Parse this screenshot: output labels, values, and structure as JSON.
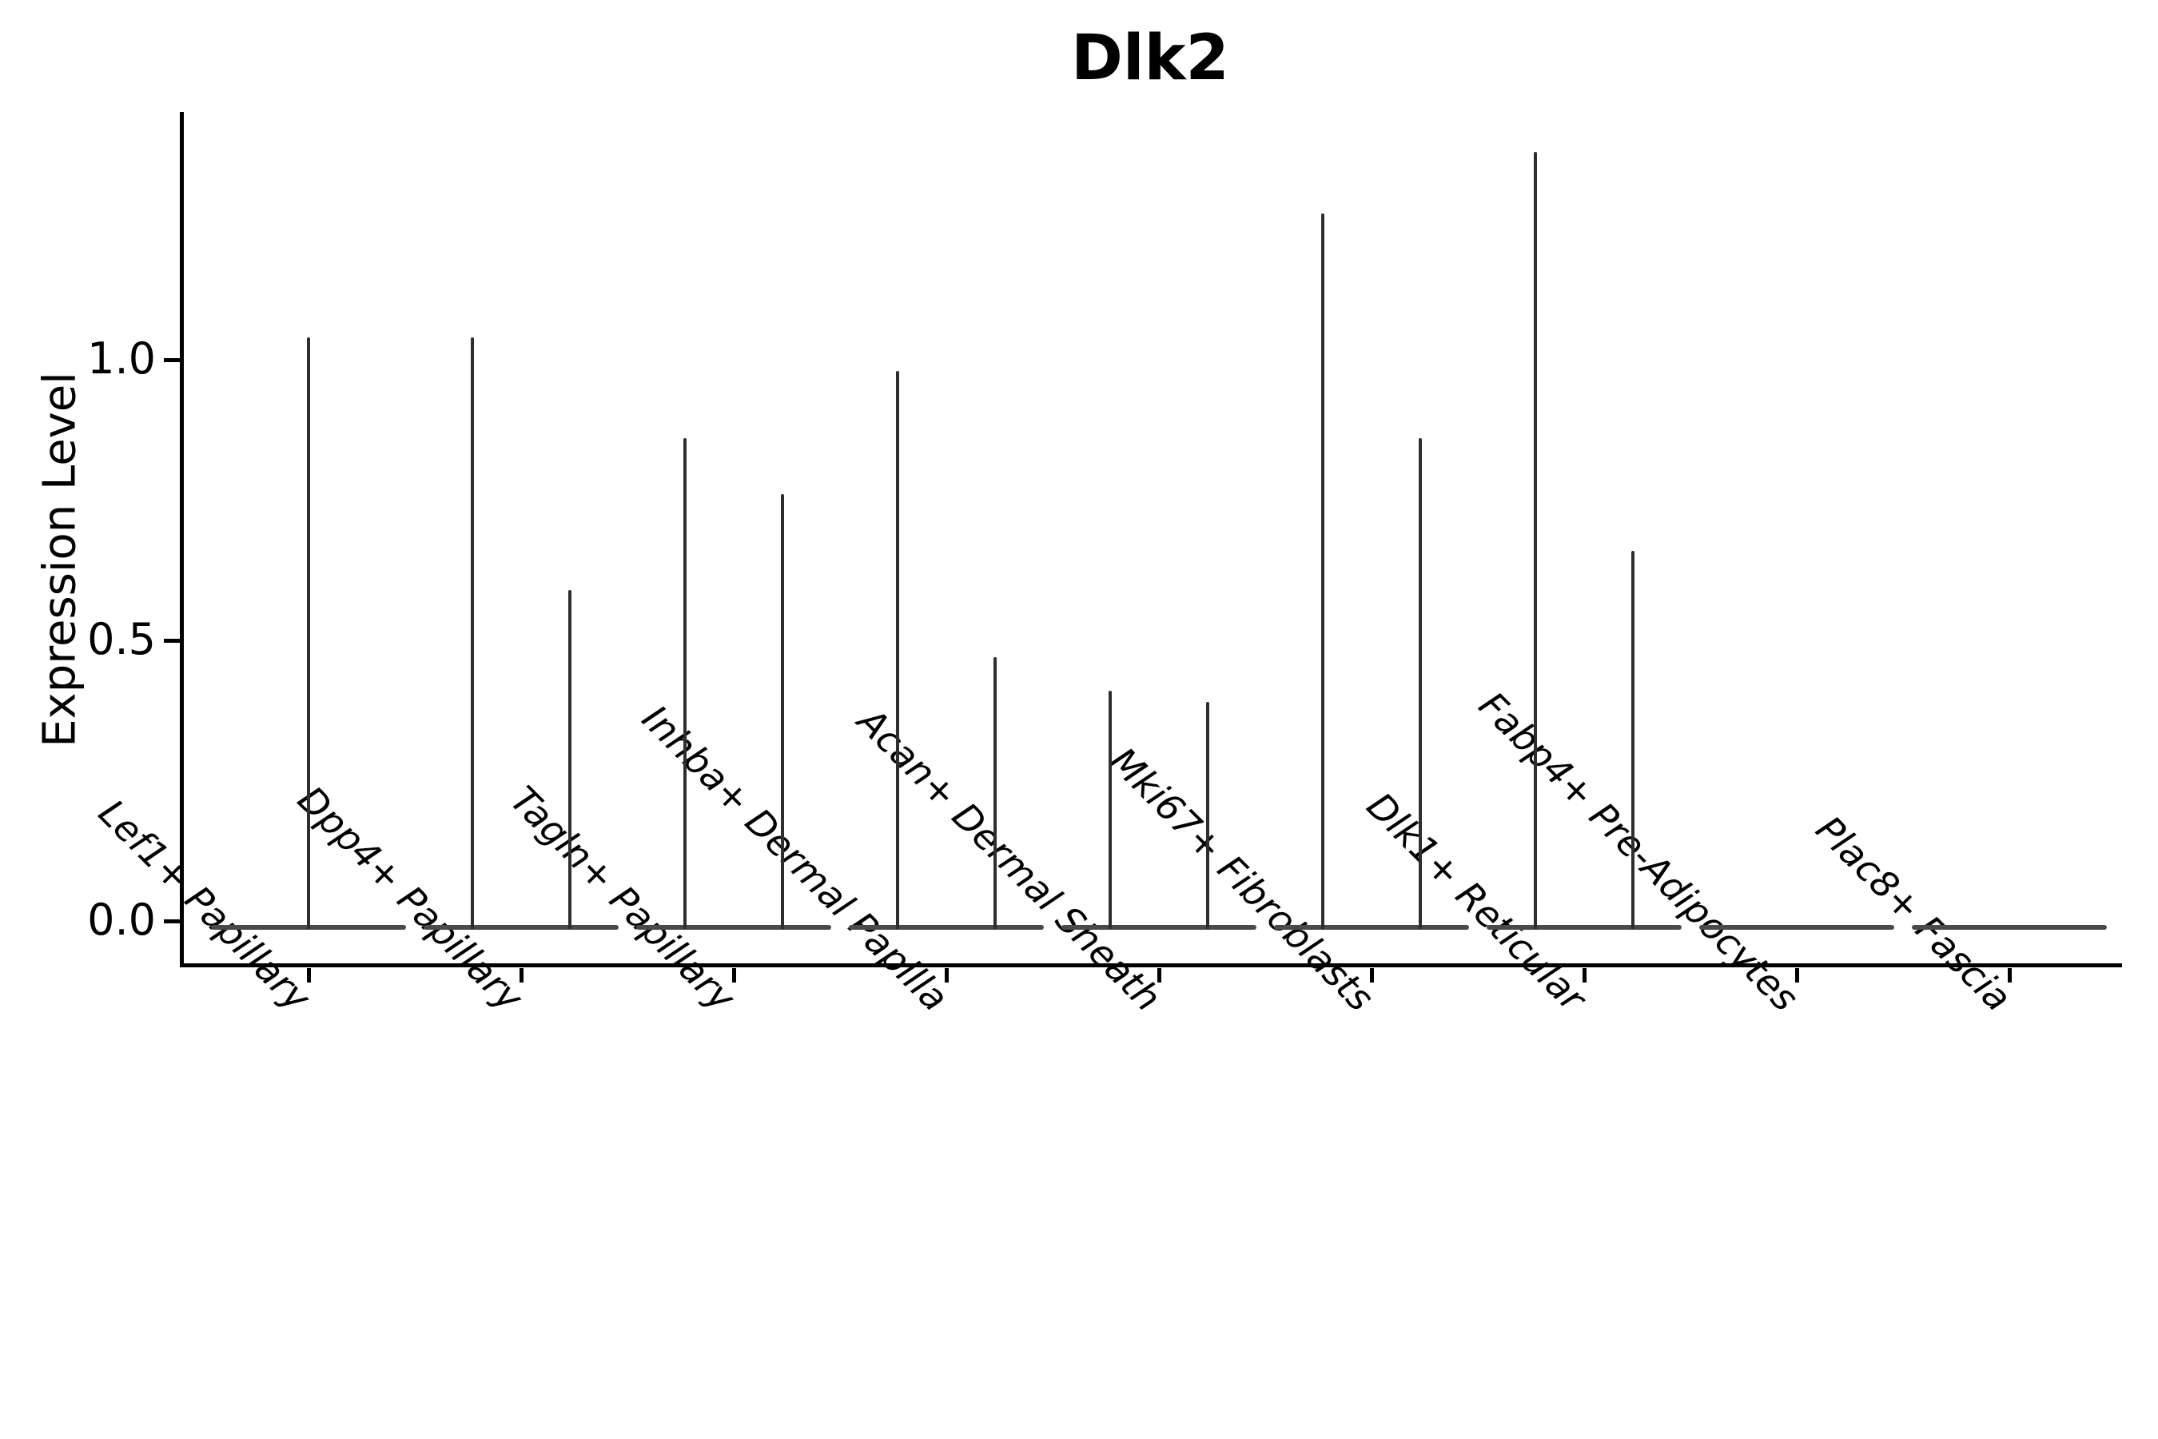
{
  "chart_data": {
    "type": "violin",
    "title": "Dlk2",
    "xlabel": "",
    "ylabel": "Expression Level",
    "y_ticks": [
      "0.0",
      "0.5",
      "1.0"
    ],
    "y_tick_values": [
      0.0,
      0.5,
      1.0
    ],
    "ylim": [
      -0.08,
      1.44
    ],
    "grid": false,
    "legend": "none",
    "orientation": "vertical",
    "description": "Violin plot of Dlk2 expression per fibroblast cluster; most categories contain two very thin split violins (wide flat base at 0 with a hairline spike up to the max expression value).",
    "categories": [
      "Lef1+ Papillary",
      "Dpp4+ Papillary",
      "Tagln+ Papillary",
      "Inhba+ Dermal Papilla",
      "Acan+ Dermal Sheath",
      "Mki67+ Fibroblasts",
      "Dlk1+ Reticular",
      "Fabp4+ Pre-Adipocytes",
      "Plac8+ Fascia"
    ],
    "violin_max_expression": [
      [
        1.04
      ],
      [
        1.04,
        0.59
      ],
      [
        0.86,
        0.76
      ],
      [
        0.98,
        0.47
      ],
      [
        0.41,
        0.39
      ],
      [
        1.26,
        0.86
      ],
      [
        1.37,
        0.66
      ],
      [
        0.0
      ],
      [
        0.0
      ]
    ]
  },
  "colors": {
    "axis": "#000000",
    "text": "#000000",
    "violin_spike": "#2e2e2e",
    "violin_base": "#4a4a4a",
    "background": "#ffffff"
  }
}
